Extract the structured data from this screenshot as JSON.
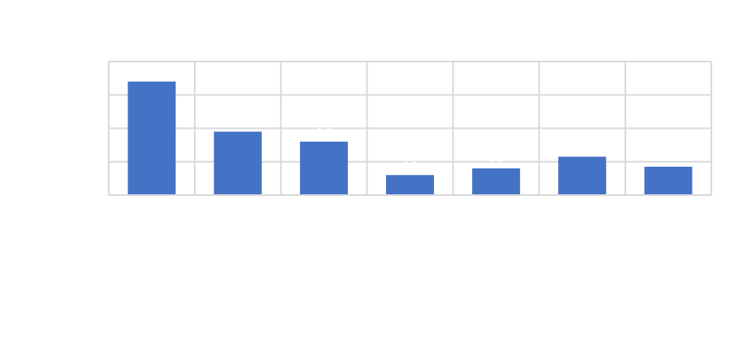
{
  "chart_data": {
    "type": "bar",
    "title": "",
    "xlabel": "",
    "ylabel": "",
    "categories": [
      "",
      "",
      "",
      "",
      "",
      "",
      ""
    ],
    "values": [
      3.4,
      1.9,
      1.6,
      0.6,
      0.8,
      1.15,
      0.85
    ],
    "ylim": [
      0,
      4
    ],
    "grid": true,
    "legend": "none",
    "colors": {
      "bar": "#4472c4",
      "grid": "#d9d9d9",
      "label": "#ffffff"
    }
  }
}
